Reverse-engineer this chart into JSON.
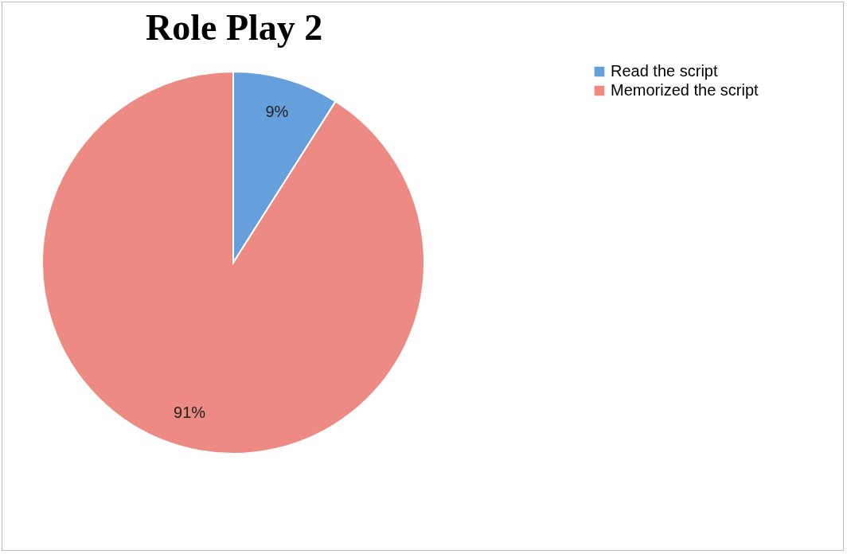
{
  "chart_data": {
    "type": "pie",
    "title": "Role Play 2",
    "categories": [
      "Read the script",
      "Memorized the script"
    ],
    "values": [
      9,
      91
    ],
    "colors": [
      "#659fdc",
      "#ec8a83"
    ],
    "value_labels": [
      "9%",
      "91%"
    ],
    "legend": "right"
  }
}
